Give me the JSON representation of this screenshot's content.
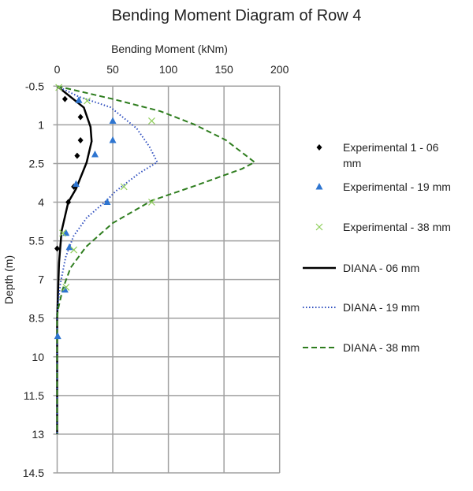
{
  "chart_data": {
    "type": "line",
    "title": "Bending Moment Diagram of Row 4",
    "xlabel": "Bending Moment (kNm)",
    "ylabel": "Depth (m)",
    "xlim": [
      0,
      200
    ],
    "ylim": [
      -0.5,
      14.5
    ],
    "x_ticks": [
      "0",
      "50",
      "100",
      "150",
      "200"
    ],
    "y_ticks": [
      "-0.5",
      "1",
      "2.5",
      "4",
      "5.5",
      "7",
      "8.5",
      "10",
      "11.5",
      "13",
      "14.5"
    ],
    "x_axis_position": "top",
    "y_axis_inverted": true,
    "grid": true,
    "legend": "right",
    "series": [
      {
        "name": "Experimental 1 - 06 mm",
        "kind": "scatter",
        "marker": "diamond",
        "color": "#000000",
        "points": [
          [
            7,
            0
          ],
          [
            21,
            0.7
          ],
          [
            21,
            1.6
          ],
          [
            18,
            2.2
          ],
          [
            15,
            3.4
          ],
          [
            10,
            4
          ],
          [
            0,
            5.8
          ]
        ]
      },
      {
        "name": "Experimental - 19 mm",
        "kind": "scatter",
        "marker": "triangle",
        "color": "#2e75d0",
        "points": [
          [
            19.5,
            0.05
          ],
          [
            50,
            0.85
          ],
          [
            50,
            1.6
          ],
          [
            34,
            2.15
          ],
          [
            17,
            3.3
          ],
          [
            45,
            4
          ],
          [
            8,
            5.2
          ],
          [
            11,
            5.75
          ],
          [
            7,
            7.4
          ],
          [
            0.5,
            9.2
          ]
        ]
      },
      {
        "name": "Experimental - 38 mm",
        "kind": "scatter",
        "marker": "cross",
        "color": "#8fce5a",
        "points": [
          [
            1.5,
            -0.45
          ],
          [
            27,
            0.07
          ],
          [
            85,
            0.85
          ],
          [
            60,
            3.4
          ],
          [
            85,
            4
          ],
          [
            5,
            5.2
          ],
          [
            15,
            5.85
          ],
          [
            8,
            7.3
          ]
        ]
      },
      {
        "name": "DIANA - 06 mm",
        "kind": "line",
        "style": "solid",
        "color": "#000000",
        "points": [
          [
            0,
            -0.5
          ],
          [
            24,
            0.33
          ],
          [
            30,
            1.08
          ],
          [
            31,
            1.64
          ],
          [
            26.5,
            2.46
          ],
          [
            17,
            3.48
          ],
          [
            10,
            4
          ],
          [
            4,
            5.12
          ],
          [
            1.7,
            6.34
          ],
          [
            0.5,
            7.87
          ],
          [
            0,
            8.5
          ],
          [
            0,
            13
          ]
        ]
      },
      {
        "name": "DIANA - 19 mm",
        "kind": "line",
        "style": "dotted",
        "color": "#2f4fbf",
        "points": [
          [
            0,
            -0.5
          ],
          [
            19.5,
            -0.09
          ],
          [
            48,
            0.32
          ],
          [
            71.5,
            1.14
          ],
          [
            83,
            1.85
          ],
          [
            90,
            2.45
          ],
          [
            74,
            2.87
          ],
          [
            52.5,
            3.58
          ],
          [
            45,
            3.91
          ],
          [
            26.5,
            4.61
          ],
          [
            14.7,
            5.32
          ],
          [
            7.6,
            6.14
          ],
          [
            2.9,
            7.16
          ],
          [
            0.5,
            8.07
          ],
          [
            0,
            8.5
          ],
          [
            0,
            13
          ]
        ]
      },
      {
        "name": "DIANA - 38 mm",
        "kind": "line",
        "style": "dashed",
        "color": "#2e7d1e",
        "points": [
          [
            0,
            -0.5
          ],
          [
            50,
            0
          ],
          [
            92.6,
            0.47
          ],
          [
            123,
            0.98
          ],
          [
            151.6,
            1.59
          ],
          [
            177.5,
            2.45
          ],
          [
            166,
            2.71
          ],
          [
            123,
            3.38
          ],
          [
            85,
            3.94
          ],
          [
            50,
            4.81
          ],
          [
            26,
            5.73
          ],
          [
            12,
            6.55
          ],
          [
            5,
            7.37
          ],
          [
            0.7,
            8.18
          ],
          [
            0,
            8.5
          ],
          [
            0,
            13
          ]
        ]
      }
    ]
  }
}
